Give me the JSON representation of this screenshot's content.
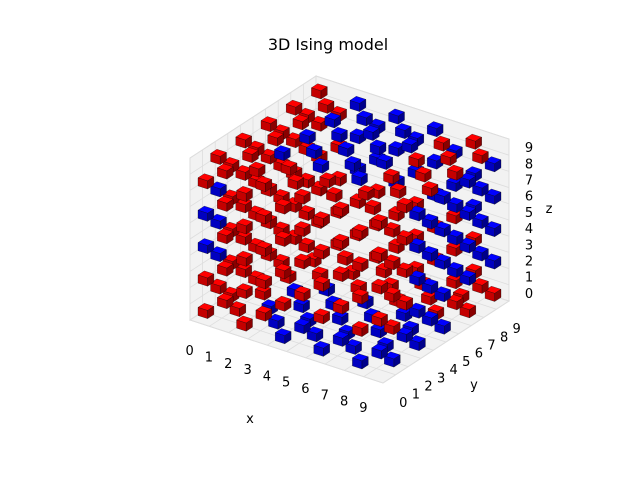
{
  "chart_data": {
    "type": "voxels",
    "title": "3D Ising model",
    "xlabel": "x",
    "ylabel": "y",
    "zlabel": "z",
    "xlim": [
      0,
      10
    ],
    "ylim": [
      0,
      10
    ],
    "zlim": [
      0,
      10
    ],
    "x_ticks": [
      "0",
      "1",
      "2",
      "3",
      "4",
      "5",
      "6",
      "7",
      "8",
      "9"
    ],
    "y_ticks": [
      "0",
      "1",
      "2",
      "3",
      "4",
      "5",
      "6",
      "7",
      "8",
      "9"
    ],
    "z_ticks": [
      "0",
      "1",
      "2",
      "3",
      "4",
      "5",
      "6",
      "7",
      "8",
      "9"
    ],
    "grid_size": [
      10,
      10,
      10
    ],
    "spin_colors": {
      "up": "#ff0000",
      "down": "#0000ff"
    },
    "voxel_rule": "voxels shown at even (x+y+z); spin up (red) in outer shell, spin down (blue) domain in upper-back interior and bottom front",
    "grid": true
  }
}
